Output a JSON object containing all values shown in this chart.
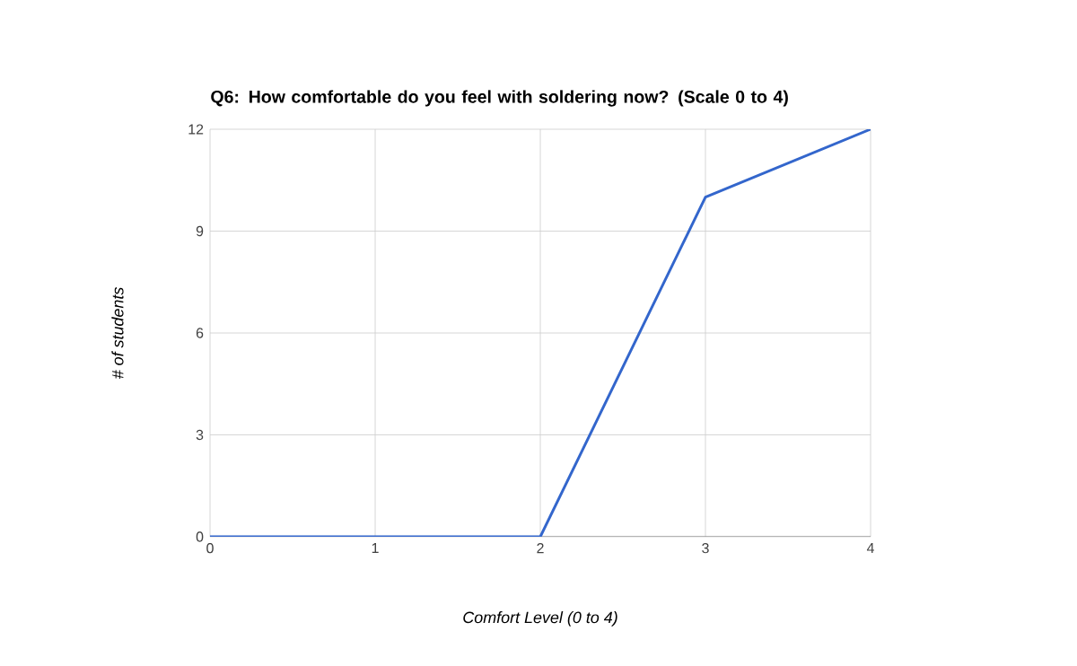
{
  "chart_data": {
    "type": "line",
    "title": "Q6: How comfortable do you feel with soldering now? (Scale 0 to 4)",
    "xlabel": "Comfort Level (0 to 4)",
    "ylabel": "# of students",
    "x": [
      0,
      1,
      2,
      3,
      4
    ],
    "series": [
      {
        "color": "#3366cc",
        "values": [
          0,
          0,
          0,
          10,
          12
        ]
      }
    ],
    "xlim": [
      0,
      4
    ],
    "xticks": [
      0,
      1,
      2,
      3,
      4
    ],
    "ylim": [
      0,
      12
    ],
    "yticks": [
      0,
      3,
      6,
      9,
      12
    ],
    "grid": true,
    "marker": "none",
    "line_style": "solid"
  }
}
